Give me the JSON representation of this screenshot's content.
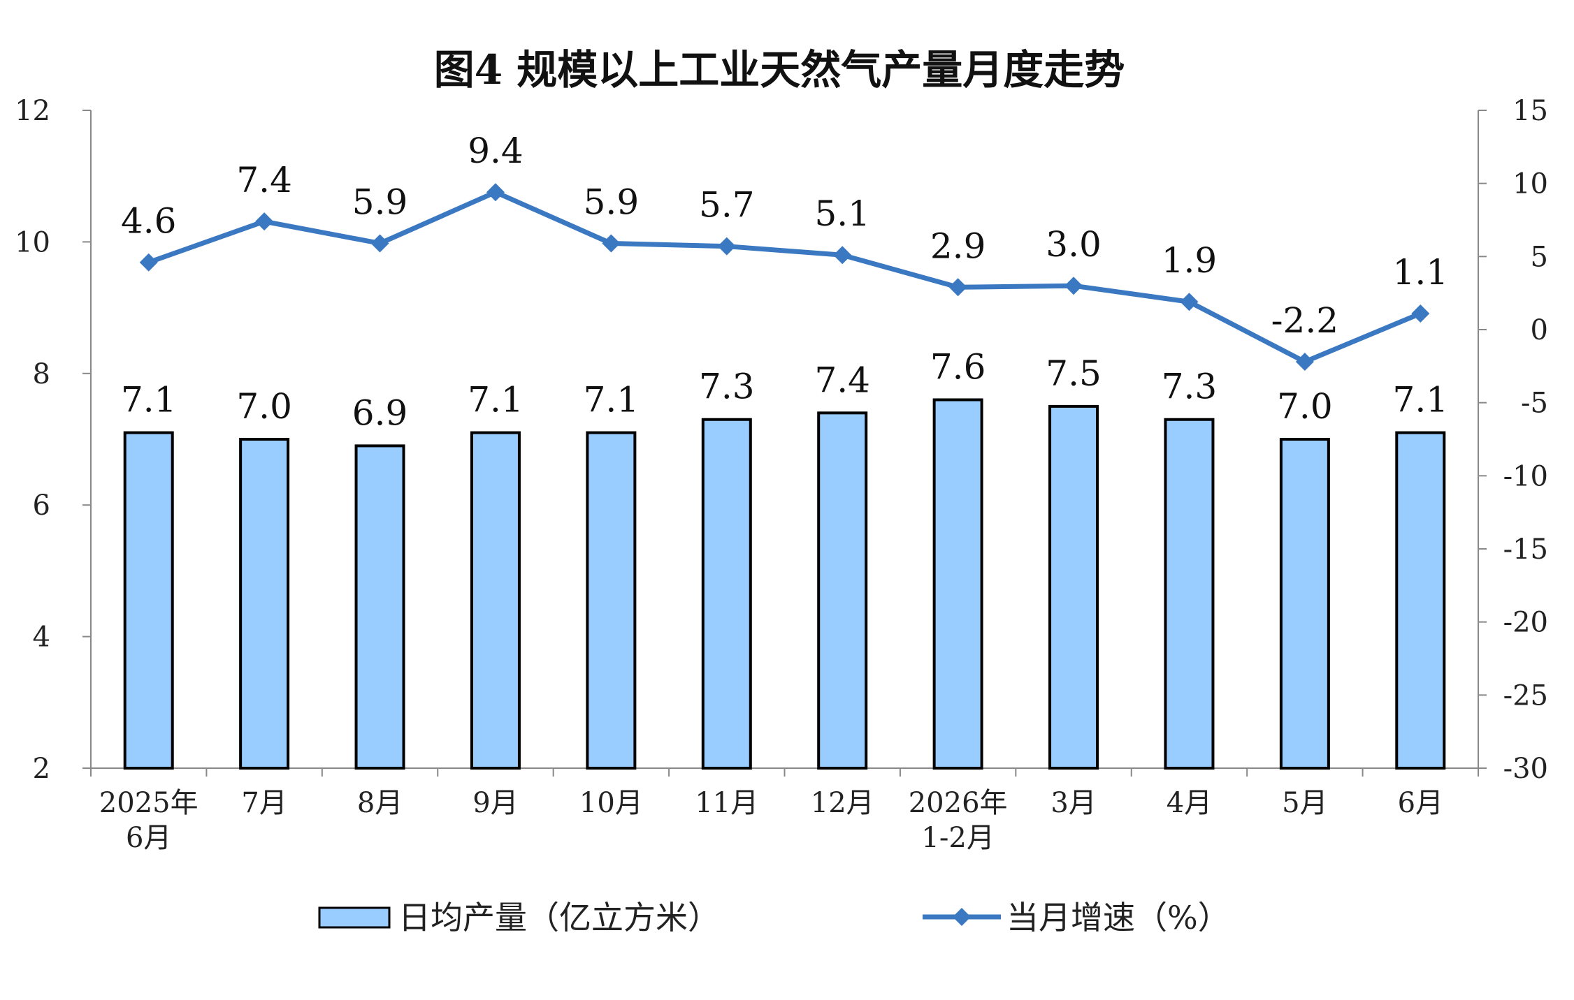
{
  "chart_data": {
    "type": "bar",
    "title": "图4  规模以上工业天然气产量月度走势",
    "categories": [
      [
        "2025年",
        "6月"
      ],
      [
        "7月"
      ],
      [
        "8月"
      ],
      [
        "9月"
      ],
      [
        "10月"
      ],
      [
        "11月"
      ],
      [
        "12月"
      ],
      [
        "2026年",
        "1-2月"
      ],
      [
        "3月"
      ],
      [
        "4月"
      ],
      [
        "5月"
      ],
      [
        "6月"
      ]
    ],
    "series": [
      {
        "name": "日均产量（亿立方米）",
        "type": "bar",
        "axis": "left",
        "color": "#99CCFF",
        "values": [
          7.1,
          7.0,
          6.9,
          7.1,
          7.1,
          7.3,
          7.4,
          7.6,
          7.5,
          7.3,
          7.0,
          7.1
        ],
        "labels": [
          "7.1",
          "7.0",
          "6.9",
          "7.1",
          "7.1",
          "7.3",
          "7.4",
          "7.6",
          "7.5",
          "7.3",
          "7.0",
          "7.1"
        ]
      },
      {
        "name": "当月增速（%）",
        "type": "line",
        "axis": "right",
        "color": "#3A78C2",
        "values": [
          4.6,
          7.4,
          5.9,
          9.4,
          5.9,
          5.7,
          5.1,
          2.9,
          3.0,
          1.9,
          -2.2,
          1.1
        ],
        "labels": [
          "4.6",
          "7.4",
          "5.9",
          "9.4",
          "5.9",
          "5.7",
          "5.1",
          "2.9",
          "3.0",
          "1.9",
          "-2.2",
          "1.1"
        ]
      }
    ],
    "y_left": {
      "range": [
        2,
        12
      ],
      "ticks": [
        "2",
        "4",
        "6",
        "8",
        "10",
        "12"
      ]
    },
    "y_right": {
      "range": [
        -30,
        15
      ],
      "ticks": [
        "-30",
        "-25",
        "-20",
        "-15",
        "-10",
        "-5",
        "0",
        "5",
        "10",
        "15"
      ]
    },
    "legend_position": "bottom",
    "grid": false
  }
}
